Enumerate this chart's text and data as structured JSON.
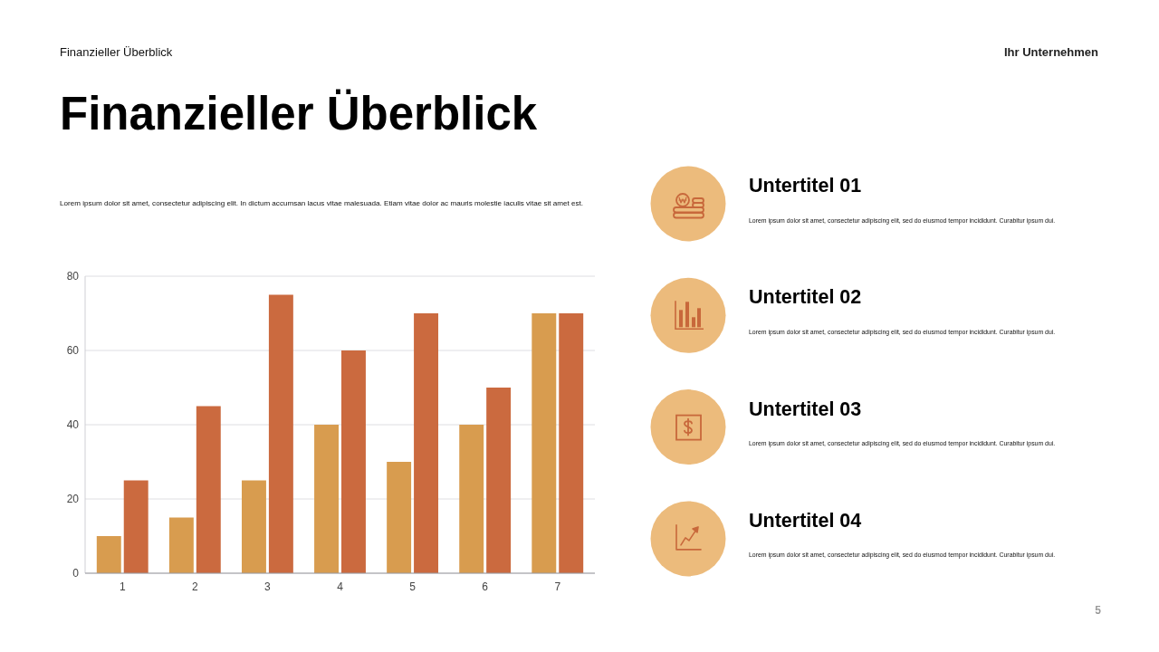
{
  "chart_data": [
    {
      "type": "bar",
      "title": "Finanzieller Überblick",
      "subtitle": "Lorem ipsum dolor sit amet, consectetur adipiscing elit. In dictum accumsan lacus vitae malesuada. Etiam vitae dolor ac mauris molestie iaculis vitae sit amet est.",
      "annotations": [
        "Finanzieller Überblick",
        "Ihr Unternehmen",
        "5"
      ],
      "categories": [
        "1",
        "2",
        "3",
        "4",
        "5",
        "6",
        "7"
      ],
      "series": [
        {
          "color": "#d89c4f",
          "values": [
            10,
            15,
            25,
            40,
            30,
            40,
            70
          ]
        },
        {
          "color": "#cb6a3f",
          "values": [
            25,
            45,
            75,
            60,
            70,
            50,
            70
          ]
        }
      ],
      "ylim": [
        0,
        80
      ],
      "yticks": [
        0,
        20,
        40,
        60,
        80
      ],
      "grid": "y"
    },
    {
      "type": "other",
      "annotations": [
        "Untertitel 01",
        "Lorem ipsum dolor sit amet, consectetur adipiscing elit, sed do eiusmod tempor incididunt. Curabitur ipsum dui.",
        "Untertitel 02",
        "Lorem ipsum dolor sit amet, consectetur adipiscing elit, sed do eiusmod tempor incididunt. Curabitur ipsum dui.",
        "Untertitel 03",
        "Lorem ipsum dolor sit amet, consectetur adipiscing elit, sed do eiusmod tempor incididunt. Curabitur ipsum dui.",
        "Untertitel 04",
        "Lorem ipsum dolor sit amet, consectetur adipiscing elit, sed do eiusmod tempor incididunt. Curabitur ipsum dui."
      ]
    }
  ]
}
